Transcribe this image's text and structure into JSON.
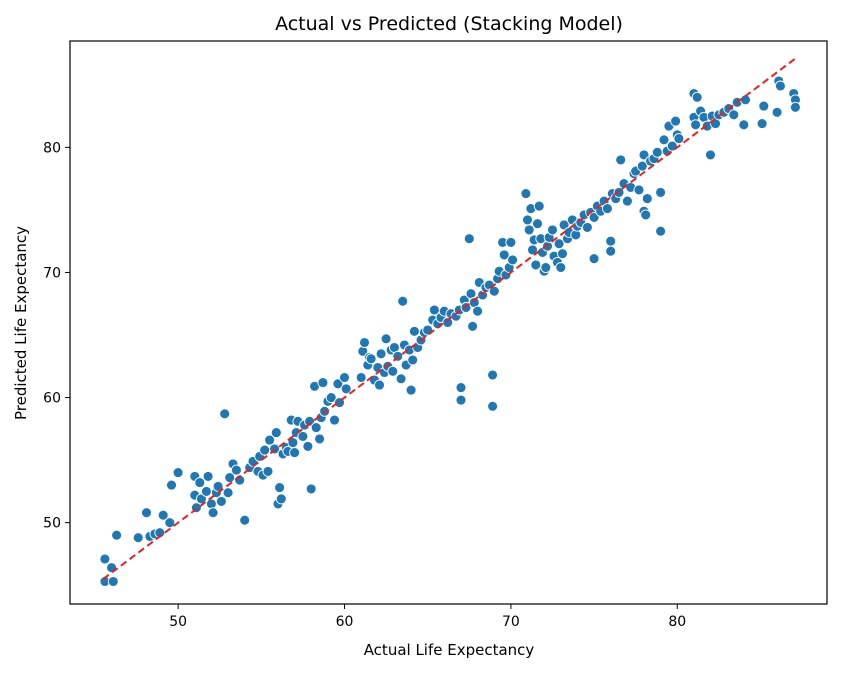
{
  "chart_data": {
    "type": "scatter",
    "title": "Actual vs Predicted (Stacking Model)",
    "xlabel": "Actual Life Expectancy",
    "ylabel": "Predicted Life Expectancy",
    "xlim": [
      43.5,
      89.0
    ],
    "ylim": [
      43.5,
      88.5
    ],
    "xticks": [
      50,
      60,
      70,
      80
    ],
    "yticks": [
      50,
      60,
      70,
      80
    ],
    "grid": false,
    "point_color": "#1f77b4",
    "reference_line": {
      "x": [
        45.5,
        87.1
      ],
      "y": [
        45.5,
        87.1
      ],
      "color": "#e8211d",
      "style": "dashed"
    },
    "points": [
      [
        45.6,
        47.1
      ],
      [
        45.6,
        45.3
      ],
      [
        46.0,
        46.4
      ],
      [
        46.1,
        45.3
      ],
      [
        46.3,
        49.0
      ],
      [
        47.6,
        48.8
      ],
      [
        48.1,
        50.8
      ],
      [
        48.3,
        48.9
      ],
      [
        48.6,
        49.1
      ],
      [
        48.9,
        49.2
      ],
      [
        49.1,
        50.6
      ],
      [
        49.5,
        50.0
      ],
      [
        49.6,
        53.0
      ],
      [
        50.0,
        54.0
      ],
      [
        51.0,
        53.7
      ],
      [
        51.0,
        52.2
      ],
      [
        51.1,
        51.2
      ],
      [
        51.3,
        53.2
      ],
      [
        51.4,
        51.9
      ],
      [
        51.7,
        52.5
      ],
      [
        51.8,
        53.7
      ],
      [
        52.0,
        51.5
      ],
      [
        52.1,
        50.8
      ],
      [
        52.3,
        52.4
      ],
      [
        52.4,
        52.9
      ],
      [
        52.6,
        51.7
      ],
      [
        52.8,
        58.7
      ],
      [
        53.0,
        52.4
      ],
      [
        53.1,
        53.6
      ],
      [
        53.3,
        54.7
      ],
      [
        53.5,
        54.2
      ],
      [
        53.7,
        53.4
      ],
      [
        54.0,
        50.2
      ],
      [
        54.3,
        54.4
      ],
      [
        54.5,
        54.9
      ],
      [
        54.8,
        54.1
      ],
      [
        54.9,
        55.3
      ],
      [
        55.1,
        53.8
      ],
      [
        55.2,
        55.8
      ],
      [
        55.4,
        54.1
      ],
      [
        55.5,
        56.6
      ],
      [
        55.8,
        55.9
      ],
      [
        55.9,
        57.2
      ],
      [
        56.0,
        51.5
      ],
      [
        56.1,
        52.8
      ],
      [
        56.2,
        51.9
      ],
      [
        56.3,
        55.5
      ],
      [
        56.5,
        56.0
      ],
      [
        56.6,
        55.7
      ],
      [
        56.8,
        58.2
      ],
      [
        56.9,
        56.4
      ],
      [
        57.0,
        55.6
      ],
      [
        57.1,
        57.2
      ],
      [
        57.2,
        58.1
      ],
      [
        57.5,
        56.9
      ],
      [
        57.6,
        57.8
      ],
      [
        57.8,
        56.1
      ],
      [
        57.9,
        58.1
      ],
      [
        58.0,
        52.7
      ],
      [
        58.2,
        60.9
      ],
      [
        58.3,
        57.6
      ],
      [
        58.5,
        56.7
      ],
      [
        58.6,
        58.4
      ],
      [
        58.7,
        61.2
      ],
      [
        58.8,
        58.9
      ],
      [
        59.0,
        59.7
      ],
      [
        59.2,
        60.0
      ],
      [
        59.4,
        58.2
      ],
      [
        59.6,
        61.1
      ],
      [
        59.7,
        59.6
      ],
      [
        60.0,
        61.6
      ],
      [
        60.1,
        60.7
      ],
      [
        61.0,
        61.6
      ],
      [
        61.1,
        63.7
      ],
      [
        61.2,
        64.4
      ],
      [
        61.4,
        62.6
      ],
      [
        61.5,
        63.2
      ],
      [
        61.6,
        63.1
      ],
      [
        61.8,
        61.4
      ],
      [
        62.0,
        62.4
      ],
      [
        62.1,
        61.0
      ],
      [
        62.2,
        63.5
      ],
      [
        62.4,
        62.0
      ],
      [
        62.5,
        64.7
      ],
      [
        62.6,
        62.5
      ],
      [
        62.8,
        63.8
      ],
      [
        62.9,
        62.1
      ],
      [
        63.0,
        64.0
      ],
      [
        63.2,
        63.3
      ],
      [
        63.4,
        61.5
      ],
      [
        63.5,
        67.7
      ],
      [
        63.6,
        64.2
      ],
      [
        63.7,
        62.6
      ],
      [
        63.9,
        63.8
      ],
      [
        64.0,
        60.6
      ],
      [
        64.1,
        63.0
      ],
      [
        64.2,
        65.3
      ],
      [
        64.4,
        64.0
      ],
      [
        64.6,
        64.6
      ],
      [
        64.8,
        65.2
      ],
      [
        65.0,
        65.4
      ],
      [
        65.3,
        66.2
      ],
      [
        65.4,
        67.0
      ],
      [
        65.6,
        65.9
      ],
      [
        65.8,
        66.4
      ],
      [
        66.0,
        66.9
      ],
      [
        66.2,
        66.0
      ],
      [
        66.4,
        66.7
      ],
      [
        66.7,
        66.5
      ],
      [
        66.9,
        67.0
      ],
      [
        67.0,
        60.8
      ],
      [
        67.0,
        59.8
      ],
      [
        67.2,
        67.8
      ],
      [
        67.3,
        67.2
      ],
      [
        67.5,
        72.7
      ],
      [
        67.6,
        68.3
      ],
      [
        67.7,
        65.7
      ],
      [
        67.8,
        67.6
      ],
      [
        68.0,
        66.9
      ],
      [
        68.1,
        69.2
      ],
      [
        68.3,
        68.2
      ],
      [
        68.5,
        68.8
      ],
      [
        68.7,
        69.0
      ],
      [
        68.9,
        61.8
      ],
      [
        68.9,
        59.3
      ],
      [
        69.0,
        68.5
      ],
      [
        69.2,
        69.5
      ],
      [
        69.3,
        70.1
      ],
      [
        69.5,
        72.4
      ],
      [
        69.6,
        71.4
      ],
      [
        69.7,
        69.8
      ],
      [
        69.9,
        70.4
      ],
      [
        70.0,
        72.4
      ],
      [
        70.1,
        71.0
      ],
      [
        70.9,
        76.3
      ],
      [
        71.0,
        74.2
      ],
      [
        71.1,
        73.4
      ],
      [
        71.2,
        75.1
      ],
      [
        71.3,
        71.8
      ],
      [
        71.4,
        72.6
      ],
      [
        71.5,
        70.6
      ],
      [
        71.6,
        73.9
      ],
      [
        71.7,
        75.3
      ],
      [
        71.8,
        72.7
      ],
      [
        71.9,
        71.6
      ],
      [
        72.0,
        70.1
      ],
      [
        72.1,
        70.4
      ],
      [
        72.2,
        72.1
      ],
      [
        72.3,
        72.8
      ],
      [
        72.5,
        73.4
      ],
      [
        72.6,
        71.3
      ],
      [
        72.8,
        70.8
      ],
      [
        72.9,
        72.3
      ],
      [
        73.0,
        70.4
      ],
      [
        73.1,
        71.5
      ],
      [
        73.2,
        73.8
      ],
      [
        73.4,
        72.7
      ],
      [
        73.5,
        73.2
      ],
      [
        73.7,
        74.2
      ],
      [
        73.9,
        73.0
      ],
      [
        74.0,
        73.7
      ],
      [
        74.2,
        74.0
      ],
      [
        74.4,
        74.6
      ],
      [
        74.6,
        73.6
      ],
      [
        74.8,
        74.8
      ],
      [
        75.0,
        71.1
      ],
      [
        75.0,
        74.4
      ],
      [
        75.2,
        75.3
      ],
      [
        75.4,
        74.9
      ],
      [
        75.6,
        75.7
      ],
      [
        75.8,
        75.1
      ],
      [
        76.0,
        72.5
      ],
      [
        76.0,
        71.7
      ],
      [
        76.1,
        76.3
      ],
      [
        76.3,
        75.9
      ],
      [
        76.5,
        76.4
      ],
      [
        76.6,
        79.0
      ],
      [
        76.8,
        77.1
      ],
      [
        77.0,
        75.7
      ],
      [
        77.2,
        76.8
      ],
      [
        77.4,
        77.9
      ],
      [
        77.5,
        78.1
      ],
      [
        77.7,
        76.6
      ],
      [
        77.9,
        78.5
      ],
      [
        78.0,
        79.4
      ],
      [
        78.0,
        74.9
      ],
      [
        78.1,
        74.6
      ],
      [
        78.2,
        75.9
      ],
      [
        78.4,
        78.9
      ],
      [
        78.6,
        79.1
      ],
      [
        78.8,
        79.6
      ],
      [
        79.0,
        73.3
      ],
      [
        79.0,
        76.4
      ],
      [
        79.2,
        80.6
      ],
      [
        79.4,
        79.7
      ],
      [
        79.5,
        81.7
      ],
      [
        79.7,
        80.1
      ],
      [
        79.9,
        82.1
      ],
      [
        80.0,
        81.0
      ],
      [
        80.1,
        80.7
      ],
      [
        81.0,
        82.4
      ],
      [
        81.0,
        84.3
      ],
      [
        81.1,
        81.8
      ],
      [
        81.2,
        84.0
      ],
      [
        81.4,
        82.9
      ],
      [
        81.6,
        82.4
      ],
      [
        81.8,
        81.7
      ],
      [
        82.0,
        79.4
      ],
      [
        82.1,
        82.5
      ],
      [
        82.3,
        81.9
      ],
      [
        82.5,
        82.6
      ],
      [
        82.8,
        82.8
      ],
      [
        83.1,
        83.1
      ],
      [
        83.4,
        82.6
      ],
      [
        83.6,
        83.6
      ],
      [
        84.0,
        81.8
      ],
      [
        84.1,
        83.8
      ],
      [
        85.1,
        81.9
      ],
      [
        85.2,
        83.3
      ],
      [
        86.0,
        82.8
      ],
      [
        86.1,
        85.3
      ],
      [
        86.2,
        84.9
      ],
      [
        87.0,
        84.3
      ],
      [
        87.1,
        83.8
      ],
      [
        87.1,
        83.2
      ]
    ]
  }
}
